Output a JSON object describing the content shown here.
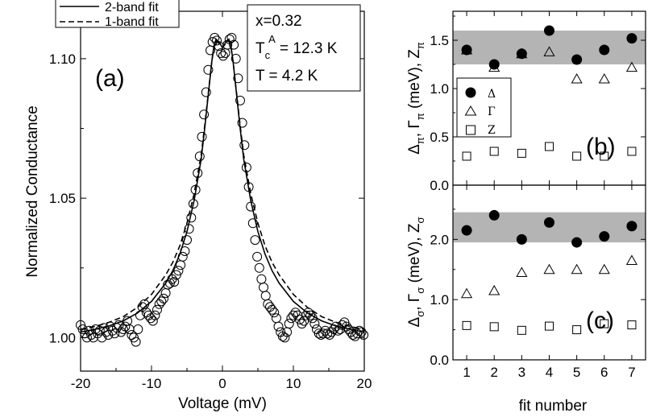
{
  "chart_data": [
    {
      "panel": "a",
      "type": "scatter",
      "panel_label": "(a)",
      "xlabel": "Voltage (mV)",
      "ylabel": "Normalized Conductance",
      "xlim": [
        -20,
        20
      ],
      "ylim": [
        0.988,
        1.117
      ],
      "xticks": [
        -20,
        -10,
        0,
        10,
        20
      ],
      "xticklabels": [
        "-20",
        "-10",
        "0",
        "10",
        "20"
      ],
      "yticks": [
        1.0,
        1.05,
        1.1
      ],
      "yticklabels": [
        "1.00",
        "1.05",
        "1.10"
      ],
      "legend": {
        "position": "top-left",
        "entries": [
          {
            "label": "2-band fit",
            "style": "solid"
          },
          {
            "label": "1-band fit",
            "style": "dashed"
          }
        ]
      },
      "annotation": {
        "x_line": "x=0.32",
        "tc_main": "T",
        "tc_sub": "c",
        "tc_sup": "A",
        "tc_value": " = 12.3 K",
        "t_line": "T = 4.2 K"
      },
      "series": [
        {
          "name": "data",
          "marker": "open-circle",
          "points": [
            [
              -20.0,
              1.0045
            ],
            [
              -19.7,
              1.003
            ],
            [
              -19.4,
              1.0015
            ],
            [
              -19.1,
              1.0
            ],
            [
              -18.8,
              1.0025
            ],
            [
              -18.5,
              1.001
            ],
            [
              -18.2,
              1.0
            ],
            [
              -17.9,
              1.003
            ],
            [
              -17.6,
              1.0015
            ],
            [
              -17.3,
              1.0025
            ],
            [
              -17.0,
              1.0
            ],
            [
              -16.7,
              1.0035
            ],
            [
              -16.4,
              1.002
            ],
            [
              -16.1,
              1.001
            ],
            [
              -15.8,
              1.004
            ],
            [
              -15.5,
              1.0025
            ],
            [
              -15.2,
              1.0015
            ],
            [
              -14.9,
              1.0035
            ],
            [
              -14.6,
              1.0045
            ],
            [
              -14.3,
              1.002
            ],
            [
              -14.0,
              1.003
            ],
            [
              -13.7,
              1.004
            ],
            [
              -13.4,
              1.006
            ],
            [
              -13.1,
              1.003
            ],
            [
              -12.8,
              1.001
            ],
            [
              -12.5,
              1.0
            ],
            [
              -12.2,
              0.9985
            ],
            [
              -11.9,
              1.003
            ],
            [
              -11.6,
              1.008
            ],
            [
              -11.3,
              1.011
            ],
            [
              -11.0,
              1.012
            ],
            [
              -10.7,
              1.009
            ],
            [
              -10.4,
              1.008
            ],
            [
              -10.1,
              1.007
            ],
            [
              -9.8,
              1.006
            ],
            [
              -9.5,
              1.008
            ],
            [
              -9.2,
              1.01
            ],
            [
              -8.9,
              1.012
            ],
            [
              -8.6,
              1.013
            ],
            [
              -8.3,
              1.014
            ],
            [
              -8.0,
              1.016
            ],
            [
              -7.7,
              1.019
            ],
            [
              -7.4,
              1.0195
            ],
            [
              -7.1,
              1.021
            ],
            [
              -6.8,
              1.02
            ],
            [
              -6.5,
              1.0225
            ],
            [
              -6.2,
              1.024
            ],
            [
              -5.9,
              1.026
            ],
            [
              -5.6,
              1.029
            ],
            [
              -5.3,
              1.031
            ],
            [
              -5.0,
              1.035
            ],
            [
              -4.7,
              1.039
            ],
            [
              -4.4,
              1.043
            ],
            [
              -4.1,
              1.048
            ],
            [
              -3.8,
              1.053
            ],
            [
              -3.5,
              1.059
            ],
            [
              -3.2,
              1.065
            ],
            [
              -2.9,
              1.072
            ],
            [
              -2.6,
              1.08
            ],
            [
              -2.3,
              1.088
            ],
            [
              -2.0,
              1.096
            ],
            [
              -1.7,
              1.103
            ],
            [
              -1.4,
              1.106
            ],
            [
              -1.1,
              1.1075
            ],
            [
              -0.8,
              1.1065
            ],
            [
              -0.5,
              1.1045
            ],
            [
              -0.2,
              1.102
            ],
            [
              0.1,
              1.101
            ],
            [
              0.4,
              1.102
            ],
            [
              0.7,
              1.105
            ],
            [
              1.0,
              1.107
            ],
            [
              1.3,
              1.1075
            ],
            [
              1.6,
              1.105
            ],
            [
              1.9,
              1.1
            ],
            [
              2.2,
              1.093
            ],
            [
              2.5,
              1.085
            ],
            [
              2.8,
              1.077
            ],
            [
              3.1,
              1.069
            ],
            [
              3.4,
              1.061
            ],
            [
              3.7,
              1.054
            ],
            [
              4.0,
              1.047
            ],
            [
              4.3,
              1.041
            ],
            [
              4.6,
              1.035
            ],
            [
              4.9,
              1.029
            ],
            [
              5.2,
              1.025
            ],
            [
              5.5,
              1.021
            ],
            [
              5.8,
              1.018
            ],
            [
              6.1,
              1.015
            ],
            [
              6.4,
              1.012
            ],
            [
              6.7,
              1.011
            ],
            [
              7.0,
              1.01
            ],
            [
              7.3,
              1.009
            ],
            [
              7.6,
              1.007
            ],
            [
              7.9,
              1.004
            ],
            [
              8.2,
              1.002
            ],
            [
              8.5,
              1.0005
            ],
            [
              8.8,
              1.0
            ],
            [
              9.1,
              1.002
            ],
            [
              9.4,
              1.005
            ],
            [
              9.7,
              1.007
            ],
            [
              10.0,
              1.008
            ],
            [
              10.3,
              1.009
            ],
            [
              10.6,
              1.008
            ],
            [
              10.9,
              1.0065
            ],
            [
              11.2,
              1.005
            ],
            [
              11.5,
              1.006
            ],
            [
              11.8,
              1.008
            ],
            [
              12.1,
              1.009
            ],
            [
              12.4,
              1.008
            ],
            [
              12.7,
              1.007
            ],
            [
              13.0,
              1.005
            ],
            [
              13.3,
              1.003
            ],
            [
              13.6,
              1.0015
            ],
            [
              13.9,
              1.001
            ],
            [
              14.2,
              1.0015
            ],
            [
              14.5,
              1.0025
            ],
            [
              14.8,
              1.0015
            ],
            [
              15.1,
              1.001
            ],
            [
              15.4,
              1.002
            ],
            [
              15.7,
              1.003
            ],
            [
              16.0,
              1.004
            ],
            [
              16.3,
              1.0025
            ],
            [
              16.6,
              1.003
            ],
            [
              16.9,
              1.0045
            ],
            [
              17.2,
              1.0055
            ],
            [
              17.5,
              1.004
            ],
            [
              17.8,
              1.003
            ],
            [
              18.1,
              1.002
            ],
            [
              18.4,
              1.001
            ],
            [
              18.7,
              1.0005
            ],
            [
              19.0,
              1.0015
            ],
            [
              19.3,
              1.0025
            ],
            [
              19.6,
              1.002
            ],
            [
              19.9,
              1.001
            ]
          ]
        },
        {
          "name": "2-band fit",
          "style": "solid",
          "points": [
            [
              -20,
              1.002
            ],
            [
              -18,
              1.003
            ],
            [
              -16,
              1.0042
            ],
            [
              -14,
              1.006
            ],
            [
              -12,
              1.0088
            ],
            [
              -10,
              1.013
            ],
            [
              -8,
              1.0195
            ],
            [
              -7,
              1.024
            ],
            [
              -6,
              1.03
            ],
            [
              -5,
              1.038
            ],
            [
              -4,
              1.049
            ],
            [
              -3,
              1.064
            ],
            [
              -2.5,
              1.075
            ],
            [
              -2,
              1.087
            ],
            [
              -1.5,
              1.099
            ],
            [
              -1.2,
              1.1045
            ],
            [
              -0.9,
              1.107
            ],
            [
              -0.5,
              1.106
            ],
            [
              0,
              1.104
            ],
            [
              0.5,
              1.106
            ],
            [
              0.9,
              1.107
            ],
            [
              1.2,
              1.1045
            ],
            [
              1.5,
              1.099
            ],
            [
              2,
              1.087
            ],
            [
              2.5,
              1.075
            ],
            [
              3,
              1.064
            ],
            [
              4,
              1.049
            ],
            [
              5,
              1.038
            ],
            [
              6,
              1.03
            ],
            [
              7,
              1.024
            ],
            [
              8,
              1.0195
            ],
            [
              10,
              1.013
            ],
            [
              12,
              1.0088
            ],
            [
              14,
              1.006
            ],
            [
              16,
              1.0042
            ],
            [
              18,
              1.003
            ],
            [
              20,
              1.002
            ]
          ]
        },
        {
          "name": "1-band fit",
          "style": "dashed",
          "points": [
            [
              -20,
              1.003
            ],
            [
              -18,
              1.004
            ],
            [
              -16,
              1.0055
            ],
            [
              -14,
              1.0075
            ],
            [
              -12,
              1.0108
            ],
            [
              -10,
              1.0155
            ],
            [
              -8,
              1.0225
            ],
            [
              -7,
              1.027
            ],
            [
              -6,
              1.033
            ],
            [
              -5,
              1.041
            ],
            [
              -4,
              1.0515
            ],
            [
              -3,
              1.0655
            ],
            [
              -2.5,
              1.076
            ],
            [
              -2,
              1.0875
            ],
            [
              -1.5,
              1.099
            ],
            [
              -1.2,
              1.104
            ],
            [
              -0.9,
              1.1065
            ],
            [
              -0.5,
              1.1055
            ],
            [
              0,
              1.104
            ],
            [
              0.5,
              1.1055
            ],
            [
              0.9,
              1.1065
            ],
            [
              1.2,
              1.104
            ],
            [
              1.5,
              1.099
            ],
            [
              2,
              1.0875
            ],
            [
              2.5,
              1.076
            ],
            [
              3,
              1.0655
            ],
            [
              4,
              1.0515
            ],
            [
              5,
              1.041
            ],
            [
              6,
              1.033
            ],
            [
              7,
              1.027
            ],
            [
              8,
              1.0225
            ],
            [
              10,
              1.0155
            ],
            [
              12,
              1.0108
            ],
            [
              14,
              1.0075
            ],
            [
              16,
              1.0055
            ],
            [
              18,
              1.004
            ],
            [
              20,
              1.003
            ]
          ]
        }
      ]
    },
    {
      "panel": "b",
      "type": "scatter",
      "panel_label": "(b)",
      "ylabel_parts": {
        "delta": "Δ",
        "sub_pi": "π",
        "comma1": ", ",
        "gamma": "Γ",
        "sub_pi2": "π",
        "unit": " (meV), Z",
        "sub_pi3": "π"
      },
      "x": [
        1,
        2,
        3,
        4,
        5,
        6,
        7
      ],
      "xlim": [
        0.5,
        7.5
      ],
      "ylim": [
        0.0,
        1.8
      ],
      "yticks": [
        0.0,
        0.5,
        1.0,
        1.5
      ],
      "yticklabels": [
        "0.0",
        "0.5",
        "1.0",
        "1.5"
      ],
      "shaded_band": [
        1.25,
        1.6
      ],
      "legend": {
        "position": "center-left",
        "entries": [
          {
            "marker": "filled-circle",
            "label": "Δ"
          },
          {
            "marker": "open-triangle",
            "label": "Γ"
          },
          {
            "marker": "open-square",
            "label": "Z"
          }
        ]
      },
      "series": [
        {
          "name": "Δ",
          "marker": "filled-circle",
          "values": [
            1.4,
            1.25,
            1.36,
            1.6,
            1.3,
            1.4,
            1.52
          ]
        },
        {
          "name": "Γ",
          "marker": "open-triangle",
          "values": [
            1.4,
            1.22,
            1.36,
            1.38,
            1.1,
            1.1,
            1.22
          ]
        },
        {
          "name": "Z",
          "marker": "open-square",
          "values": [
            0.3,
            0.35,
            0.33,
            0.4,
            0.3,
            0.3,
            0.35
          ]
        }
      ]
    },
    {
      "panel": "c",
      "type": "scatter",
      "panel_label": "(c)",
      "ylabel_parts": {
        "delta": "Δ",
        "sub_s": "σ",
        "comma1": ", ",
        "gamma": "Γ",
        "sub_s2": "σ",
        "unit": " (meV), Z",
        "sub_s3": "σ"
      },
      "xlabel": "fit number",
      "x": [
        1,
        2,
        3,
        4,
        5,
        6,
        7
      ],
      "xticks": [
        1,
        2,
        3,
        4,
        5,
        6,
        7
      ],
      "xticklabels": [
        "1",
        "2",
        "3",
        "4",
        "5",
        "6",
        "7"
      ],
      "xlim": [
        0.5,
        7.5
      ],
      "ylim": [
        0.0,
        2.9
      ],
      "yticks": [
        0.0,
        1.0,
        2.0
      ],
      "yticklabels": [
        "0.0",
        "1.0",
        "2.0"
      ],
      "shaded_band": [
        1.95,
        2.45
      ],
      "series": [
        {
          "name": "Δ",
          "marker": "filled-circle",
          "values": [
            2.15,
            2.4,
            2.0,
            2.28,
            1.95,
            2.05,
            2.22
          ]
        },
        {
          "name": "Γ",
          "marker": "open-triangle",
          "values": [
            1.1,
            1.15,
            1.45,
            1.5,
            1.5,
            1.5,
            1.65
          ]
        },
        {
          "name": "Z",
          "marker": "open-square",
          "values": [
            0.57,
            0.55,
            0.49,
            0.56,
            0.5,
            0.6,
            0.58
          ]
        }
      ]
    }
  ]
}
